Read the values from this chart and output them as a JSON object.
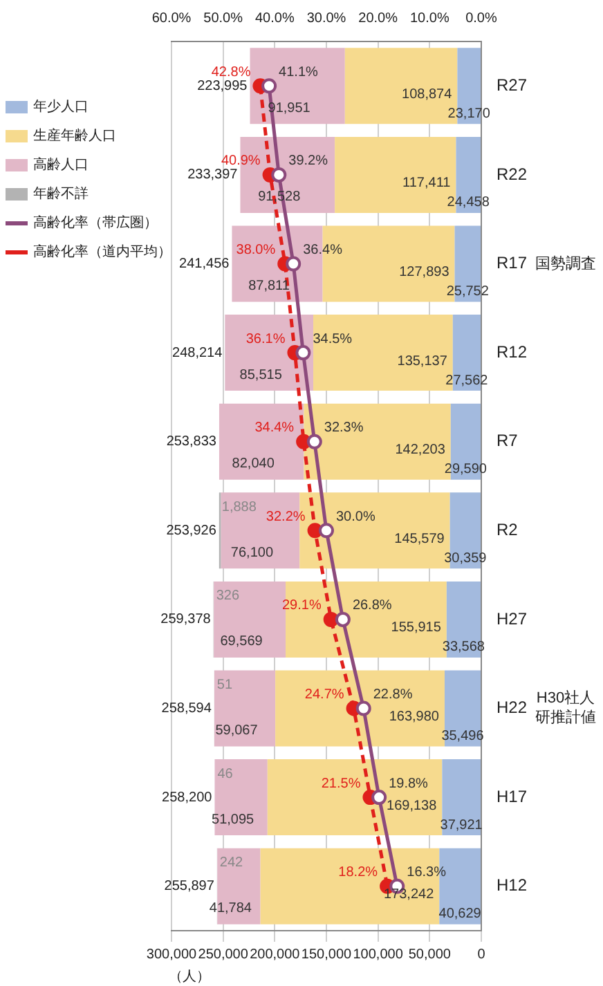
{
  "chart_data": {
    "type": "bar",
    "stacked": true,
    "orientation": "horizontal",
    "xlabel": "（人）",
    "categories": [
      "R27",
      "R22",
      "R17",
      "R12",
      "R7",
      "R2",
      "H27",
      "H22",
      "H17",
      "H12"
    ],
    "series": [
      {
        "name": "年少人口",
        "color": "#a3bade",
        "values": [
          23170,
          24458,
          25752,
          27562,
          29590,
          30359,
          33568,
          35496,
          37921,
          40629
        ],
        "value_labels": [
          "23,170",
          "24,458",
          "25,752",
          "27,562",
          "29,590",
          "30,359",
          "33,568",
          "35,496",
          "37,921",
          "40,629"
        ]
      },
      {
        "name": "生産年齢人口",
        "color": "#f6da8e",
        "values": [
          108874,
          117411,
          127893,
          135137,
          142203,
          145579,
          155915,
          163980,
          169138,
          173242
        ],
        "value_labels": [
          "108,874",
          "117,411",
          "127,893",
          "135,137",
          "142,203",
          "145,579",
          "155,915",
          "163,980",
          "169,138",
          "173,242"
        ]
      },
      {
        "name": "高齢人口",
        "color": "#e2b8c8",
        "values": [
          91951,
          91528,
          87811,
          85515,
          82040,
          76100,
          69569,
          59067,
          51095,
          41784
        ],
        "value_labels": [
          "91,951",
          "91,528",
          "87,811",
          "85,515",
          "82,040",
          "76,100",
          "69,569",
          "59,067",
          "51,095",
          "41,784"
        ]
      },
      {
        "name": "年齢不詳",
        "color": "#b3b3b3",
        "values": [
          null,
          null,
          null,
          null,
          null,
          1888,
          326,
          51,
          46,
          242
        ],
        "value_labels": [
          null,
          null,
          null,
          null,
          null,
          "1,888",
          "326",
          "51",
          "46",
          "242"
        ]
      },
      {
        "name": "高齢化率（帯広圏）",
        "type": "line",
        "axis": "x2",
        "color": "#8c4a7c",
        "marker": "circle",
        "line_style": "solid",
        "values": [
          41.1,
          39.2,
          36.4,
          34.5,
          32.3,
          30.0,
          26.8,
          22.8,
          19.8,
          16.3
        ],
        "value_labels": [
          "41.1%",
          "39.2%",
          "36.4%",
          "34.5%",
          "32.3%",
          "30.0%",
          "26.8%",
          "22.8%",
          "19.8%",
          "16.3%"
        ]
      },
      {
        "name": "高齢化率（道内平均）",
        "type": "line",
        "axis": "x2",
        "color": "#e0201c",
        "marker": "circle",
        "line_style": "dashed",
        "values": [
          42.8,
          40.9,
          38.0,
          36.1,
          34.4,
          32.2,
          29.1,
          24.7,
          21.5,
          18.2
        ],
        "value_labels": [
          "42.8%",
          "40.9%",
          "38.0%",
          "36.1%",
          "34.4%",
          "32.2%",
          "29.1%",
          "24.7%",
          "21.5%",
          "18.2%"
        ]
      }
    ],
    "totals": [
      "223,995",
      "233,397",
      "241,456",
      "248,214",
      "253,833",
      "253,926",
      "259,378",
      "258,594",
      "258,200",
      "255,897"
    ],
    "xlim": [
      300000,
      0
    ],
    "xticks": [
      {
        "value": 300000,
        "label": "300,000"
      },
      {
        "value": 250000,
        "label": "250,000"
      },
      {
        "value": 200000,
        "label": "200,000"
      },
      {
        "value": 150000,
        "label": "150,000"
      },
      {
        "value": 100000,
        "label": "100,000"
      },
      {
        "value": 50000,
        "label": "50,000"
      },
      0
    ],
    "x2lim": [
      60,
      0
    ],
    "x2ticks": [
      {
        "value": 60,
        "label": "60.0%"
      },
      {
        "value": 50,
        "label": "50.0%"
      },
      {
        "value": 40,
        "label": "40.0%"
      },
      {
        "value": 30,
        "label": "30.0%"
      },
      {
        "value": 20,
        "label": "20.0%"
      },
      {
        "value": 10,
        "label": "10.0%"
      },
      {
        "value": 0,
        "label": "0.0%"
      }
    ],
    "grid": "x",
    "legend": "left",
    "annotations": [
      "国勢調査",
      "H30社人研推計値"
    ]
  }
}
